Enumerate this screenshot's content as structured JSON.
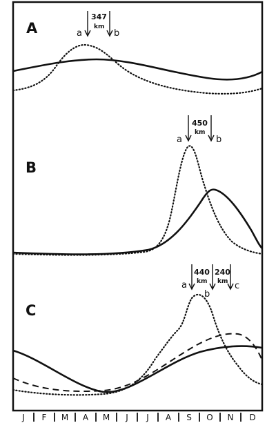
{
  "panels": [
    {
      "letter": "A",
      "arrows": [
        {
          "label": "a",
          "value": "347",
          "unit": "km"
        },
        {
          "label": "b",
          "value": "",
          "unit": ""
        }
      ]
    },
    {
      "letter": "B",
      "arrows": [
        {
          "label": "a",
          "value": "450",
          "unit": "km"
        },
        {
          "label": "b",
          "value": "",
          "unit": ""
        }
      ]
    },
    {
      "letter": "C",
      "arrows": [
        {
          "label": "a",
          "value": "440",
          "unit": "km"
        },
        {
          "label": "b",
          "value": "240",
          "unit": "km"
        },
        {
          "label": "c",
          "value": "",
          "unit": ""
        }
      ]
    }
  ],
  "months": [
    "J",
    "F",
    "M",
    "A",
    "M",
    "J",
    "J",
    "A",
    "S",
    "O",
    "N",
    "D"
  ]
}
